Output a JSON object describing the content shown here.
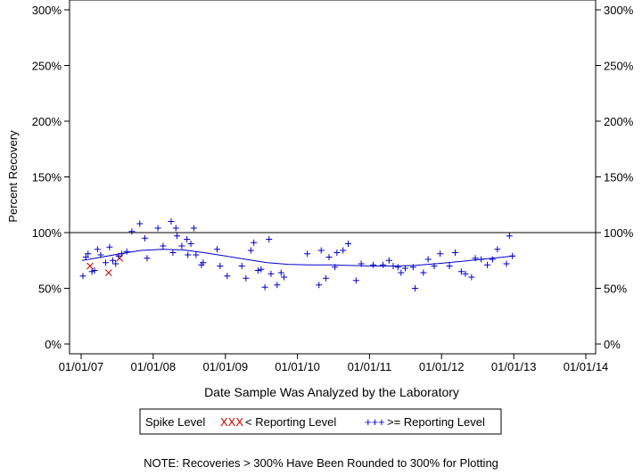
{
  "chart_data": {
    "type": "scatter",
    "title": "",
    "xlabel": "Date Sample Was Analyzed by the Laboratory",
    "ylabel": "Percent Recovery",
    "x_ticks": [
      "01/01/07",
      "01/01/08",
      "01/01/09",
      "01/01/10",
      "01/01/11",
      "01/01/12",
      "01/01/13",
      "01/01/14"
    ],
    "xlim": [
      "01/01/07",
      "01/01/14"
    ],
    "y_ticks": [
      0,
      50,
      100,
      150,
      200,
      250,
      300
    ],
    "y_tick_labels": [
      "0%",
      "50%",
      "100%",
      "150%",
      "200%",
      "250%",
      "300%"
    ],
    "ylim": [
      0,
      300
    ],
    "reference_line": 100,
    "legend": {
      "title": "Spike Level",
      "below_label": "< Reporting Level",
      "above_label": ">= Reporting Level",
      "below_marker": "XXX",
      "above_marker": "+++"
    },
    "colors": {
      "below": "#cc0000",
      "above": "#0000cc",
      "trend": "#0000cc"
    },
    "series": [
      {
        "name": "< Reporting Level",
        "marker": "x",
        "points": [
          {
            "x": "2007-02-15",
            "y": 70
          },
          {
            "x": "2007-05-20",
            "y": 64
          },
          {
            "x": "2007-07-15",
            "y": 77
          }
        ]
      },
      {
        "name": ">= Reporting Level",
        "marker": "+",
        "points": [
          {
            "x": "2007-01-10",
            "y": 61
          },
          {
            "x": "2007-01-25",
            "y": 78
          },
          {
            "x": "2007-02-05",
            "y": 81
          },
          {
            "x": "2007-02-25",
            "y": 65
          },
          {
            "x": "2007-03-10",
            "y": 66
          },
          {
            "x": "2007-03-25",
            "y": 85
          },
          {
            "x": "2007-04-10",
            "y": 80
          },
          {
            "x": "2007-05-05",
            "y": 73
          },
          {
            "x": "2007-05-25",
            "y": 87
          },
          {
            "x": "2007-06-10",
            "y": 75
          },
          {
            "x": "2007-06-25",
            "y": 72
          },
          {
            "x": "2007-07-10",
            "y": 79
          },
          {
            "x": "2007-07-25",
            "y": 81
          },
          {
            "x": "2007-08-20",
            "y": 83
          },
          {
            "x": "2007-09-15",
            "y": 101
          },
          {
            "x": "2007-10-25",
            "y": 108
          },
          {
            "x": "2007-11-20",
            "y": 95
          },
          {
            "x": "2007-12-01",
            "y": 77
          },
          {
            "x": "2008-01-25",
            "y": 104
          },
          {
            "x": "2008-02-20",
            "y": 88
          },
          {
            "x": "2008-04-01",
            "y": 110
          },
          {
            "x": "2008-04-10",
            "y": 82
          },
          {
            "x": "2008-04-25",
            "y": 104
          },
          {
            "x": "2008-05-01",
            "y": 97
          },
          {
            "x": "2008-05-25",
            "y": 88
          },
          {
            "x": "2008-06-20",
            "y": 94
          },
          {
            "x": "2008-06-25",
            "y": 80
          },
          {
            "x": "2008-07-10",
            "y": 90
          },
          {
            "x": "2008-07-25",
            "y": 104
          },
          {
            "x": "2008-08-05",
            "y": 80
          },
          {
            "x": "2008-09-01",
            "y": 71
          },
          {
            "x": "2008-09-10",
            "y": 73
          },
          {
            "x": "2008-11-20",
            "y": 85
          },
          {
            "x": "2008-12-05",
            "y": 70
          },
          {
            "x": "2009-01-10",
            "y": 61
          },
          {
            "x": "2009-03-25",
            "y": 70
          },
          {
            "x": "2009-04-15",
            "y": 59
          },
          {
            "x": "2009-05-10",
            "y": 84
          },
          {
            "x": "2009-05-25",
            "y": 91
          },
          {
            "x": "2009-06-15",
            "y": 66
          },
          {
            "x": "2009-07-01",
            "y": 67
          },
          {
            "x": "2009-07-20",
            "y": 51
          },
          {
            "x": "2009-08-10",
            "y": 94
          },
          {
            "x": "2009-08-20",
            "y": 63
          },
          {
            "x": "2009-09-20",
            "y": 53
          },
          {
            "x": "2009-10-10",
            "y": 64
          },
          {
            "x": "2009-10-25",
            "y": 60
          },
          {
            "x": "2010-02-20",
            "y": 81
          },
          {
            "x": "2010-04-20",
            "y": 53
          },
          {
            "x": "2010-05-01",
            "y": 84
          },
          {
            "x": "2010-05-25",
            "y": 59
          },
          {
            "x": "2010-06-10",
            "y": 78
          },
          {
            "x": "2010-07-10",
            "y": 69
          },
          {
            "x": "2010-07-20",
            "y": 82
          },
          {
            "x": "2010-08-20",
            "y": 84
          },
          {
            "x": "2010-09-15",
            "y": 90
          },
          {
            "x": "2010-10-25",
            "y": 57
          },
          {
            "x": "2010-11-20",
            "y": 72
          },
          {
            "x": "2011-01-20",
            "y": 71
          },
          {
            "x": "2011-03-10",
            "y": 71
          },
          {
            "x": "2011-04-10",
            "y": 75
          },
          {
            "x": "2011-05-01",
            "y": 70
          },
          {
            "x": "2011-05-25",
            "y": 69
          },
          {
            "x": "2011-06-10",
            "y": 64
          },
          {
            "x": "2011-07-01",
            "y": 68
          },
          {
            "x": "2011-08-10",
            "y": 69
          },
          {
            "x": "2011-08-20",
            "y": 50
          },
          {
            "x": "2011-10-01",
            "y": 64
          },
          {
            "x": "2011-10-25",
            "y": 76
          },
          {
            "x": "2011-11-25",
            "y": 70
          },
          {
            "x": "2011-12-25",
            "y": 81
          },
          {
            "x": "2012-02-10",
            "y": 70
          },
          {
            "x": "2012-03-10",
            "y": 82
          },
          {
            "x": "2012-04-10",
            "y": 65
          },
          {
            "x": "2012-05-01",
            "y": 63
          },
          {
            "x": "2012-06-01",
            "y": 60
          },
          {
            "x": "2012-06-20",
            "y": 77
          },
          {
            "x": "2012-07-20",
            "y": 76
          },
          {
            "x": "2012-08-20",
            "y": 71
          },
          {
            "x": "2012-09-15",
            "y": 76
          },
          {
            "x": "2012-10-10",
            "y": 85
          },
          {
            "x": "2012-11-25",
            "y": 72
          },
          {
            "x": "2012-12-10",
            "y": 97
          },
          {
            "x": "2012-12-25",
            "y": 79
          }
        ]
      }
    ],
    "trend": {
      "name": "Smoothed fit",
      "points": [
        {
          "x": "2007-01-05",
          "y": 75
        },
        {
          "x": "2007-04-15",
          "y": 78
        },
        {
          "x": "2007-07-15",
          "y": 81
        },
        {
          "x": "2007-11-01",
          "y": 84
        },
        {
          "x": "2008-02-15",
          "y": 85
        },
        {
          "x": "2008-06-01",
          "y": 84.5
        },
        {
          "x": "2008-09-15",
          "y": 82
        },
        {
          "x": "2009-01-01",
          "y": 79
        },
        {
          "x": "2009-04-15",
          "y": 76
        },
        {
          "x": "2009-08-01",
          "y": 73
        },
        {
          "x": "2009-11-15",
          "y": 71.5
        },
        {
          "x": "2010-03-01",
          "y": 71
        },
        {
          "x": "2010-06-15",
          "y": 71
        },
        {
          "x": "2010-10-01",
          "y": 70.5
        },
        {
          "x": "2011-01-15",
          "y": 70
        },
        {
          "x": "2011-05-01",
          "y": 70
        },
        {
          "x": "2011-08-15",
          "y": 70.5
        },
        {
          "x": "2011-12-01",
          "y": 72
        },
        {
          "x": "2012-04-01",
          "y": 74
        },
        {
          "x": "2012-08-15",
          "y": 76.5
        },
        {
          "x": "2013-01-05",
          "y": 79
        }
      ]
    }
  },
  "footnote": "NOTE: Recoveries > 300% Have Been Rounded to 300% for Plotting"
}
